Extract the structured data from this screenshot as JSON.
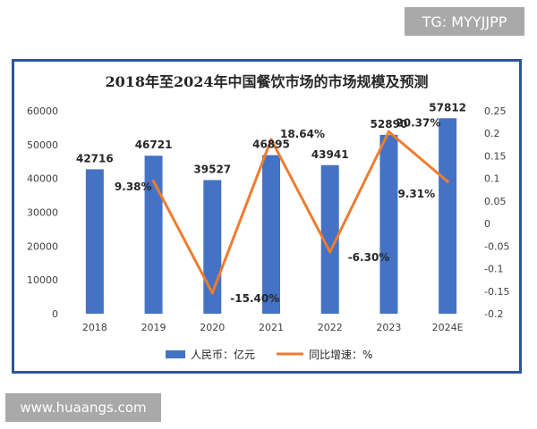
{
  "top_watermark": "TG: MYYJJPP",
  "bottom_watermark": "www.huaangs.com",
  "colors": {
    "bar": "#4472c4",
    "line": "#ed7d31",
    "frame": "#2f5597",
    "watermark_bg": "#a9a9a9"
  },
  "chart_data": {
    "type": "bar",
    "title": "2018年至2024年中国餐饮市场的市场规模及预测",
    "categories": [
      "2018",
      "2019",
      "2020",
      "2021",
      "2022",
      "2023",
      "2024E"
    ],
    "series": [
      {
        "name": "人民币：亿元",
        "type": "bar",
        "axis": "left",
        "values": [
          42716,
          46721,
          39527,
          46895,
          43941,
          52890,
          57812
        ],
        "labels": [
          "42716",
          "46721",
          "39527",
          "46895",
          "43941",
          "52890",
          "57812"
        ]
      },
      {
        "name": "同比增速：%",
        "type": "line",
        "axis": "right",
        "values": [
          null,
          0.0938,
          -0.154,
          0.1864,
          -0.063,
          0.2037,
          0.0931
        ],
        "labels": [
          "",
          "9.38%",
          "-15.40%",
          "18.64%",
          "-6.30%",
          "20.37%",
          "9.31%"
        ]
      }
    ],
    "ylim_left": [
      0,
      60000
    ],
    "yticks_left": [
      "0",
      "10000",
      "20000",
      "30000",
      "40000",
      "50000",
      "60000"
    ],
    "ylim_right": [
      -0.2,
      0.25
    ],
    "yticks_right": [
      "-0.2",
      "-0.15",
      "-0.1",
      "-0.05",
      "0",
      "0.05",
      "0.1",
      "0.15",
      "0.2",
      "0.25"
    ],
    "grid": false,
    "legend_position": "bottom"
  }
}
